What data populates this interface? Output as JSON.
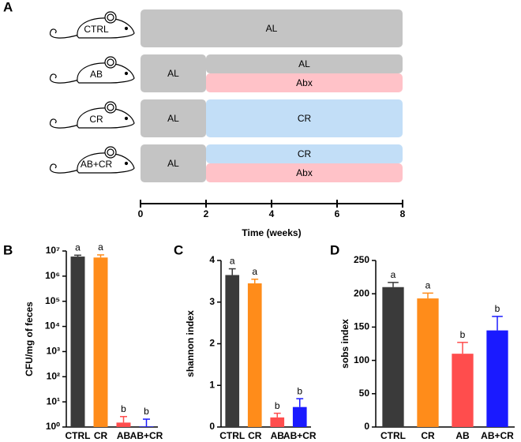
{
  "chart_data": [
    {
      "type": "timeline",
      "panel_label": "A",
      "xlabel": "Time (weeks)",
      "xlim": [
        0,
        8
      ],
      "xticks": [
        0,
        2,
        4,
        6,
        8
      ],
      "rows": [
        {
          "name": "CTRL",
          "segments": [
            {
              "label": "AL",
              "x": [
                0,
                8
              ],
              "color": "#c4c4c4"
            }
          ]
        },
        {
          "name": "AB",
          "segments": [
            {
              "label": "AL",
              "x": [
                0,
                2
              ],
              "color": "#c4c4c4"
            },
            {
              "label": "AL",
              "x": [
                2,
                8
              ],
              "color": "#c4c4c4"
            },
            {
              "label": "Abx",
              "x": [
                2,
                8
              ],
              "color": "#ffc2c8"
            }
          ]
        },
        {
          "name": "CR",
          "segments": [
            {
              "label": "AL",
              "x": [
                0,
                2
              ],
              "color": "#c4c4c4"
            },
            {
              "label": "CR",
              "x": [
                2,
                8
              ],
              "color": "#c2def7"
            }
          ]
        },
        {
          "name": "AB+CR",
          "segments": [
            {
              "label": "AL",
              "x": [
                0,
                2
              ],
              "color": "#c4c4c4"
            },
            {
              "label": "CR",
              "x": [
                2,
                8
              ],
              "color": "#c2def7"
            },
            {
              "label": "Abx",
              "x": [
                2,
                8
              ],
              "color": "#ffc2c8"
            }
          ]
        }
      ]
    },
    {
      "type": "bar",
      "panel_label": "B",
      "ylabel": "CFU/mg of feces",
      "log_scale": true,
      "categories": [
        "CTRL",
        "CR",
        "AB",
        "AB+CR"
      ],
      "values": [
        6000000,
        5500000,
        1.5,
        1.05
      ],
      "errors": [
        800000,
        1500000,
        1.1,
        1.0
      ],
      "letters": [
        "a",
        "a",
        "b",
        "b"
      ],
      "colors": [
        "#3a3a3a",
        "#ff8c1a",
        "#ff4d4d",
        "#1a1aff"
      ],
      "ylim": [
        1,
        10000000
      ],
      "yticks": [
        {
          "value": 1,
          "label": "10⁰"
        },
        {
          "value": 10,
          "label": "10¹"
        },
        {
          "value": 100,
          "label": "10²"
        },
        {
          "value": 1000,
          "label": "10³"
        },
        {
          "value": 10000,
          "label": "10⁴"
        },
        {
          "value": 100000,
          "label": "10⁵"
        },
        {
          "value": 1000000,
          "label": "10⁶"
        },
        {
          "value": 10000000,
          "label": "10⁷"
        }
      ]
    },
    {
      "type": "bar",
      "panel_label": "C",
      "ylabel": "shannon index",
      "categories": [
        "CTRL",
        "CR",
        "AB",
        "AB+CR"
      ],
      "values": [
        3.65,
        3.45,
        0.23,
        0.48
      ],
      "errors": [
        0.15,
        0.1,
        0.1,
        0.2
      ],
      "letters": [
        "a",
        "a",
        "b",
        "b"
      ],
      "colors": [
        "#3a3a3a",
        "#ff8c1a",
        "#ff4d4d",
        "#1a1aff"
      ],
      "ylim": [
        0,
        4
      ],
      "yticks": [
        0,
        1,
        2,
        3,
        4
      ]
    },
    {
      "type": "bar",
      "panel_label": "D",
      "ylabel": "sobs index",
      "categories": [
        "CTRL",
        "CR",
        "AB",
        "AB+CR"
      ],
      "values": [
        210,
        193,
        110,
        145
      ],
      "errors": [
        7,
        8,
        17,
        21
      ],
      "letters": [
        "a",
        "a",
        "b",
        "b"
      ],
      "colors": [
        "#3a3a3a",
        "#ff8c1a",
        "#ff4d4d",
        "#1a1aff"
      ],
      "ylim": [
        0,
        250
      ],
      "yticks": [
        0,
        50,
        100,
        150,
        200,
        250
      ]
    }
  ]
}
